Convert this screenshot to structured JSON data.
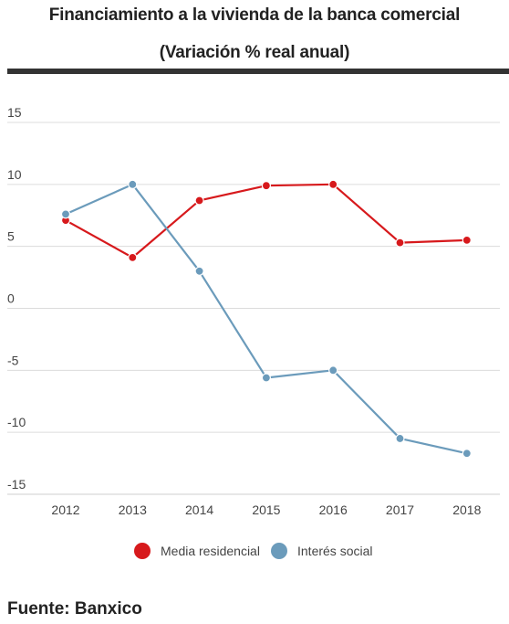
{
  "header": {
    "title": "Financiamiento a la vivienda de la banca comercial",
    "subtitle": "(Variación % real anual)"
  },
  "source": "Fuente: Banxico",
  "chart_data": {
    "type": "line",
    "title": "Financiamiento a la vivienda de la banca comercial",
    "subtitle": "(Variación % real anual)",
    "xlabel": "",
    "ylabel": "",
    "x": [
      "2012",
      "2013",
      "2014",
      "2015",
      "2016",
      "2017",
      "2018"
    ],
    "ylim": [
      -15,
      15
    ],
    "yticks": [
      15,
      10,
      5,
      0,
      -5,
      -10,
      -15
    ],
    "grid": true,
    "legend": "bottom-center",
    "series": [
      {
        "name": "Media residencial",
        "color": "#d7191c",
        "values": [
          7.1,
          4.1,
          8.7,
          9.9,
          10.0,
          5.3,
          5.5
        ]
      },
      {
        "name": "Interés social",
        "color": "#6b9bbb",
        "values": [
          7.6,
          10.0,
          3.0,
          -5.6,
          -5.0,
          -10.5,
          -11.7
        ]
      }
    ]
  }
}
